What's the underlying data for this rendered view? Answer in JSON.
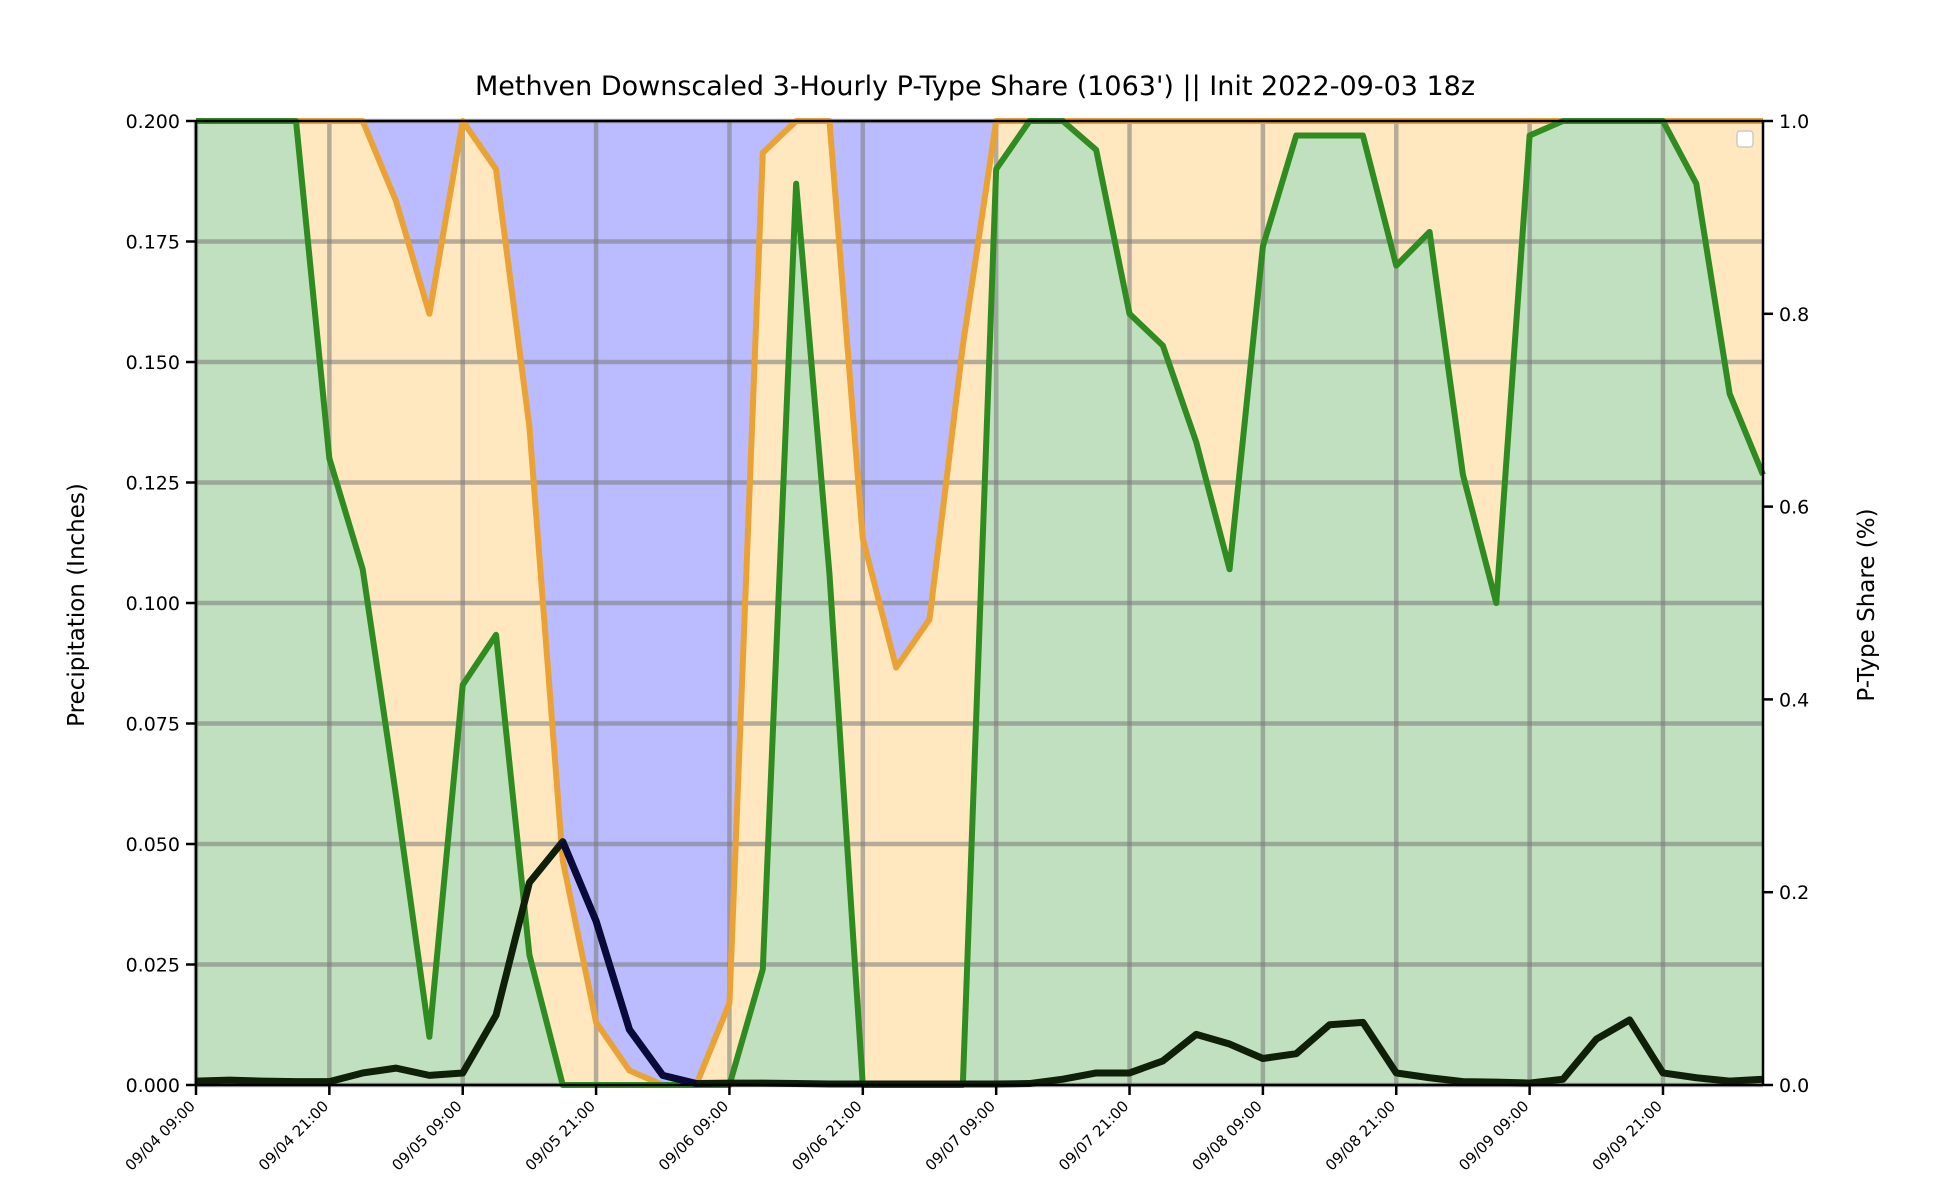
{
  "chart_data": {
    "type": "area",
    "title": "Methven Downscaled 3-Hourly P-Type Share (1063') || Init 2022-09-03 18z",
    "ylabel_left": "Precipitation (Inches)",
    "ylabel_right": "P-Type Share (%)",
    "ylim_left": [
      0,
      0.2
    ],
    "ylim_right": [
      0,
      1.0
    ],
    "left_ticks": [
      "0.000",
      "0.025",
      "0.050",
      "0.075",
      "0.100",
      "0.125",
      "0.150",
      "0.175",
      "0.200"
    ],
    "right_ticks": [
      "0.0",
      "0.2",
      "0.4",
      "0.6",
      "0.8",
      "1.0"
    ],
    "x_tick_labels": [
      "09/04 09:00",
      "09/04 21:00",
      "09/05 09:00",
      "09/05 21:00",
      "09/06 09:00",
      "09/06 21:00",
      "09/07 09:00",
      "09/07 21:00",
      "09/08 09:00",
      "09/08 21:00",
      "09/09 09:00",
      "09/09 21:00"
    ],
    "x_start": "09/04 09:00",
    "x_step_hours": 3,
    "grid": true,
    "legend_placement": "top-right",
    "colors": {
      "rain_fill": "#c1e0bf",
      "mixed_fill": "#ffe7bf",
      "snow_fill": "#bbbcff",
      "rain_line": "#2f8c20",
      "snow_line": "#eba235",
      "precip_line": "#0f1f08",
      "precip_snow_line": "#0a0a3a",
      "grid": "#7a7a7a"
    },
    "series": [
      {
        "values": [
          1.0,
          1.0,
          1.0,
          1.0,
          0.65,
          0.535,
          0.3,
          0.05,
          0.415,
          0.467,
          0.135,
          0.0,
          0.0,
          0.0,
          0.0,
          0.0,
          0.0,
          0.12,
          0.935,
          0.53,
          0.0,
          0.0,
          0.0,
          0.0,
          0.95,
          1.0,
          1.0,
          0.97,
          0.8,
          0.767,
          0.667,
          0.535,
          0.87,
          0.985,
          0.985,
          0.985,
          0.85,
          0.885,
          0.633,
          0.5,
          0.985,
          1.0,
          1.0,
          1.0,
          1.0,
          0.935,
          0.717,
          0.633
        ]
      },
      {
        "values": [
          1.0,
          1.0,
          1.0,
          1.0,
          1.0,
          1.0,
          0.917,
          0.8,
          1.0,
          0.95,
          0.683,
          0.233,
          0.065,
          0.015,
          0.0,
          0.0,
          0.085,
          0.967,
          1.0,
          1.0,
          0.567,
          0.433,
          0.483,
          0.767,
          1.0,
          1.0,
          1.0,
          1.0,
          1.0,
          1.0,
          1.0,
          1.0,
          1.0,
          1.0,
          1.0,
          1.0,
          1.0,
          1.0,
          1.0,
          1.0,
          1.0,
          1.0,
          1.0,
          1.0,
          1.0,
          1.0,
          1.0,
          1.0
        ]
      },
      {
        "values": [
          0.0008,
          0.001,
          0.0008,
          0.0007,
          0.0007,
          0.0025,
          0.0035,
          0.002,
          0.0025,
          0.0145,
          0.042,
          0.0505,
          0.034,
          0.0115,
          0.002,
          0.0003,
          0.0004,
          0.0004,
          0.0003,
          0.0002,
          0.0002,
          0.0002,
          0.0002,
          0.0002,
          0.0002,
          0.0003,
          0.0012,
          0.0025,
          0.0025,
          0.005,
          0.0105,
          0.0085,
          0.0055,
          0.0065,
          0.0125,
          0.013,
          0.0025,
          0.0015,
          0.0007,
          0.0006,
          0.0004,
          0.0012,
          0.0095,
          0.0135,
          0.0025,
          0.0015,
          0.0008,
          0.0012
        ]
      }
    ]
  }
}
